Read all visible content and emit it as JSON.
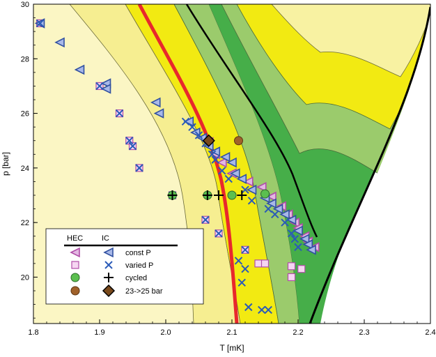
{
  "chart_data": {
    "type": "scatter",
    "xlabel": "T [mK]",
    "ylabel": "p [bar]",
    "xlim": [
      1.8,
      2.4
    ],
    "ylim": [
      18.3,
      30
    ],
    "x_ticks": [
      "1.8",
      "1.9",
      "2.0",
      "2.1",
      "2.2",
      "2.3",
      "2.4"
    ],
    "y_ticks": [
      "20",
      "22",
      "24",
      "26",
      "28",
      "30"
    ],
    "legend": {
      "placement": "bottom-left",
      "column_headers": [
        "HEC",
        "IC"
      ],
      "rows": [
        "const P",
        "varied P",
        "cycled",
        "23->25 bar"
      ]
    },
    "colors": {
      "pale_yellow": "#fbf6c4",
      "light_yellow": "#f6ee91",
      "yellow": "#f2ea12",
      "red_line": "#e8282c",
      "light_green": "#9bcb6c",
      "green": "#46ae49",
      "hec_const_fill": "#e3b8e2",
      "hec_const_stroke": "#b04ea8",
      "ic_const_fill": "#a8b8e8",
      "ic_const_stroke": "#3050a0",
      "hec_varied_fill": "#f6d6f2",
      "hec_varied_stroke": "#b04ea8",
      "ic_varied": "#2a5ab8",
      "cycled_hec": "#5bbf4f",
      "cycled_ic": "#000000",
      "ramp_hec": "#a0612a",
      "ramp_ic": "#7a4a1c"
    },
    "series": [
      {
        "name": "const P",
        "group": "IC",
        "marker": "triangle-left",
        "points": [
          [
            1.81,
            29.3
          ],
          [
            1.84,
            28.6
          ],
          [
            1.87,
            27.6
          ],
          [
            1.91,
            27.1
          ],
          [
            1.91,
            26.9
          ],
          [
            1.985,
            26.4
          ],
          [
            1.99,
            26.0
          ],
          [
            2.035,
            25.7
          ],
          [
            2.045,
            25.3
          ],
          [
            2.055,
            25.1
          ],
          [
            2.065,
            24.8
          ],
          [
            2.075,
            24.6
          ],
          [
            2.09,
            24.4
          ],
          [
            2.1,
            24.2
          ],
          [
            2.105,
            23.8
          ],
          [
            2.115,
            23.6
          ],
          [
            2.13,
            23.2
          ],
          [
            2.15,
            22.9
          ],
          [
            2.16,
            22.7
          ],
          [
            2.17,
            22.5
          ],
          [
            2.18,
            22.3
          ],
          [
            2.19,
            22.1
          ],
          [
            2.2,
            21.7
          ],
          [
            2.21,
            21.4
          ],
          [
            2.215,
            21.2
          ],
          [
            2.22,
            21.0
          ]
        ]
      },
      {
        "name": "const P",
        "group": "HEC",
        "marker": "triangle-left",
        "points": [
          [
            2.065,
            24.95
          ],
          [
            2.075,
            24.5
          ],
          [
            2.085,
            24.2
          ],
          [
            2.1,
            23.8
          ],
          [
            2.125,
            23.5
          ],
          [
            2.145,
            23.3
          ],
          [
            2.16,
            22.95
          ],
          [
            2.175,
            22.6
          ],
          [
            2.185,
            22.3
          ],
          [
            2.195,
            22.0
          ],
          [
            2.2,
            21.8
          ],
          [
            2.21,
            21.5
          ],
          [
            2.215,
            21.3
          ],
          [
            2.225,
            21.1
          ]
        ]
      },
      {
        "name": "varied P",
        "group": "HEC",
        "marker": "square",
        "points": [
          [
            1.81,
            29.3
          ],
          [
            1.9,
            27.0
          ],
          [
            1.93,
            26.0
          ],
          [
            1.945,
            25.0
          ],
          [
            1.95,
            24.8
          ],
          [
            1.96,
            24.0
          ],
          [
            2.01,
            23.0
          ],
          [
            2.06,
            22.1
          ],
          [
            2.08,
            21.6
          ],
          [
            2.12,
            21.0
          ],
          [
            2.14,
            20.5
          ],
          [
            2.15,
            20.5
          ],
          [
            2.19,
            20.4
          ],
          [
            2.19,
            20.0
          ],
          [
            2.205,
            20.3
          ]
        ]
      },
      {
        "name": "varied P",
        "group": "IC",
        "marker": "x",
        "points": [
          [
            1.81,
            29.3
          ],
          [
            1.9,
            27.0
          ],
          [
            1.93,
            26.0
          ],
          [
            1.945,
            25.0
          ],
          [
            1.95,
            24.8
          ],
          [
            1.96,
            24.0
          ],
          [
            2.01,
            23.0
          ],
          [
            2.06,
            22.1
          ],
          [
            2.08,
            21.6
          ],
          [
            2.12,
            21.0
          ],
          [
            2.03,
            25.7
          ],
          [
            2.04,
            25.5
          ],
          [
            2.05,
            25.2
          ],
          [
            2.06,
            24.9
          ],
          [
            2.07,
            24.5
          ],
          [
            2.075,
            24.3
          ],
          [
            2.085,
            23.9
          ],
          [
            2.095,
            23.6
          ],
          [
            2.12,
            23.2
          ],
          [
            2.13,
            22.8
          ],
          [
            2.155,
            22.5
          ],
          [
            2.165,
            22.3
          ],
          [
            2.18,
            22.0
          ],
          [
            2.19,
            21.6
          ],
          [
            2.195,
            21.4
          ],
          [
            2.2,
            21.1
          ],
          [
            2.11,
            20.6
          ],
          [
            2.12,
            20.3
          ],
          [
            2.115,
            19.8
          ],
          [
            2.125,
            18.9
          ],
          [
            2.145,
            18.8
          ],
          [
            2.155,
            18.8
          ]
        ]
      },
      {
        "name": "cycled",
        "group": "HEC",
        "marker": "circle",
        "points": [
          [
            2.01,
            23.0
          ],
          [
            2.063,
            23.0
          ],
          [
            2.1,
            23.0
          ],
          [
            2.15,
            23.05
          ]
        ]
      },
      {
        "name": "cycled",
        "group": "IC",
        "marker": "plus",
        "points": [
          [
            2.01,
            23.0
          ],
          [
            2.063,
            23.0
          ],
          [
            2.08,
            23.0
          ],
          [
            2.115,
            23.0
          ]
        ]
      },
      {
        "name": "23->25 bar",
        "group": "HEC",
        "marker": "circle",
        "points": [
          [
            2.065,
            25.0
          ],
          [
            2.11,
            25.0
          ]
        ]
      },
      {
        "name": "23->25 bar",
        "group": "IC",
        "marker": "diamond",
        "points": [
          [
            2.065,
            25.0
          ]
        ]
      }
    ]
  }
}
